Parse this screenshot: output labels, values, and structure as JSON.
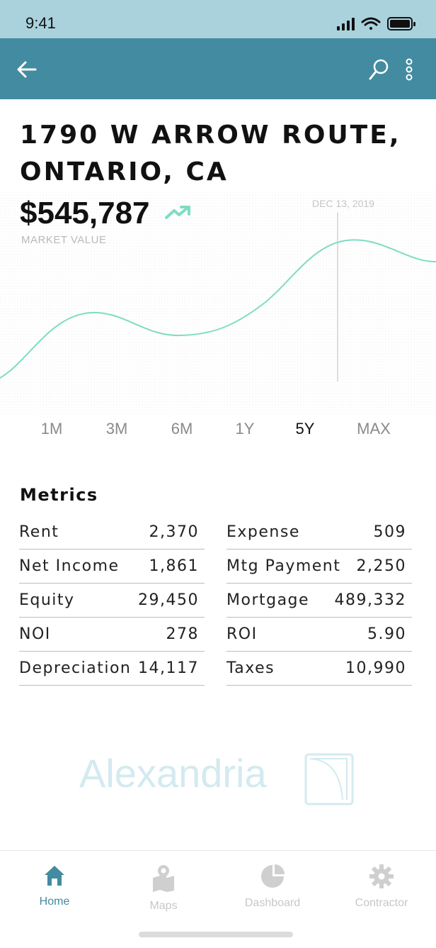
{
  "status": {
    "time": "9:41"
  },
  "property": {
    "address_line1": "1790 W ARROW ROUTE,",
    "address_line2": "ONTARIO, CA",
    "market_value": "$545,787",
    "market_value_label": "MARKET VALUE",
    "chart_date_label": "DEC 13, 2019"
  },
  "ranges": [
    "1M",
    "3M",
    "6M",
    "1Y",
    "5Y",
    "MAX"
  ],
  "selected_range": "5Y",
  "metrics": {
    "title": "Metrics",
    "left": [
      {
        "label": "Rent",
        "value": "2,370"
      },
      {
        "label": "Net Income",
        "value": "1,861"
      },
      {
        "label": "Equity",
        "value": "29,450"
      },
      {
        "label": "NOI",
        "value": "278"
      },
      {
        "label": "Depreciation",
        "value": "14,117"
      }
    ],
    "right": [
      {
        "label": "Expense",
        "value": "509"
      },
      {
        "label": "Mtg Payment",
        "value": "2,250"
      },
      {
        "label": "Mortgage",
        "value": "489,332"
      },
      {
        "label": "ROI",
        "value": "5.90"
      },
      {
        "label": "Taxes",
        "value": "10,990"
      }
    ]
  },
  "brand": {
    "name": "Alexandria"
  },
  "tabs": [
    {
      "label": "Home",
      "icon": "home-icon"
    },
    {
      "label": "Maps",
      "icon": "map-icon"
    },
    {
      "label": "Dashboard",
      "icon": "dashboard-pie-icon"
    },
    {
      "label": "Contractor",
      "icon": "gear-icon"
    }
  ],
  "active_tab": "Home",
  "colors": {
    "status_bar": "#a9d2dc",
    "app_bar": "#438ba0",
    "accent": "#438ba0",
    "chart_line": "#7fdcc4"
  }
}
